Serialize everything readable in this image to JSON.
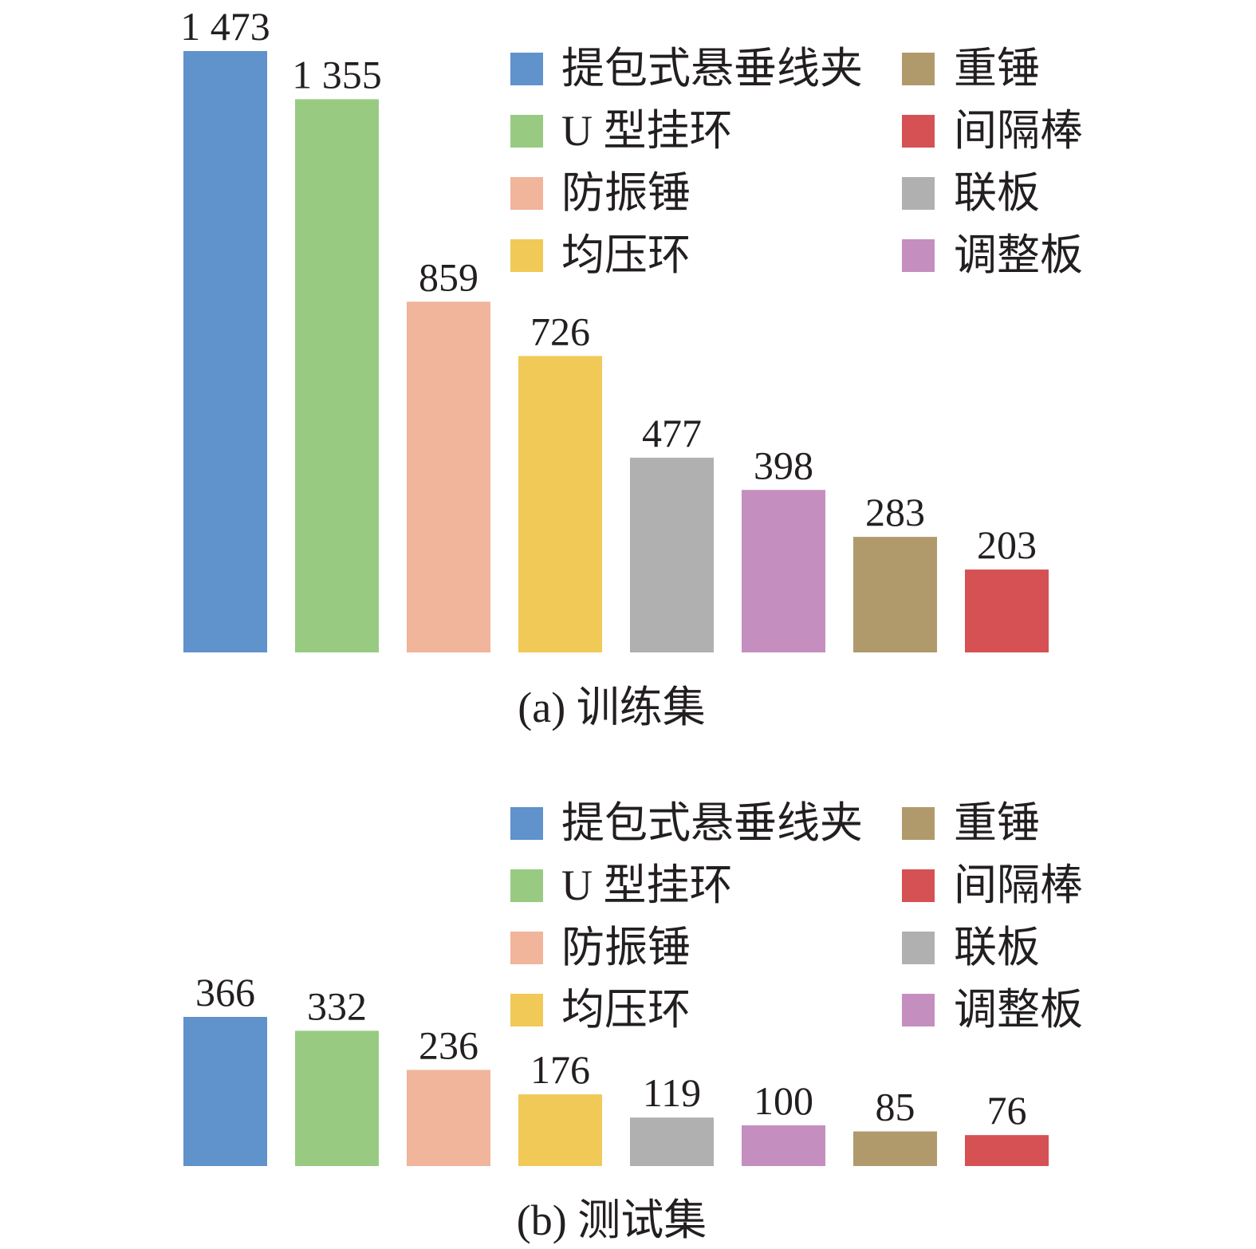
{
  "chart_data": [
    {
      "type": "bar",
      "title": "(a) 训练集",
      "categories": [
        "提包式悬垂线夹",
        "U 型挂环",
        "防振锤",
        "均压环",
        "联板",
        "调整板",
        "重锤",
        "间隔棒"
      ],
      "values": [
        1473,
        1355,
        859,
        726,
        477,
        398,
        283,
        203
      ],
      "value_labels": [
        "1 473",
        "1 355",
        "859",
        "726",
        "477",
        "398",
        "283",
        "203"
      ],
      "colors": [
        "#6092cb",
        "#98cb81",
        "#f0b59b",
        "#f0c957",
        "#b0b0b0",
        "#c48ebf",
        "#b09a6c",
        "#d55154"
      ],
      "legend": {
        "placement": "top-right",
        "items": [
          {
            "label": "提包式悬垂线夹",
            "color": "#6092cb"
          },
          {
            "label": "重锤",
            "color": "#b09a6c"
          },
          {
            "label": "U 型挂环",
            "color": "#98cb81"
          },
          {
            "label": "间隔棒",
            "color": "#d55154"
          },
          {
            "label": "防振锤",
            "color": "#f0b59b"
          },
          {
            "label": "联板",
            "color": "#b0b0b0"
          },
          {
            "label": "均压环",
            "color": "#f0c957"
          },
          {
            "label": "调整板",
            "color": "#c48ebf"
          }
        ]
      },
      "xlabel": "",
      "ylabel": "",
      "ylim": [
        0,
        1473
      ],
      "grid": false
    },
    {
      "type": "bar",
      "title": "(b) 测试集",
      "categories": [
        "提包式悬垂线夹",
        "U 型挂环",
        "防振锤",
        "均压环",
        "联板",
        "调整板",
        "重锤",
        "间隔棒"
      ],
      "values": [
        366,
        332,
        236,
        176,
        119,
        100,
        85,
        76
      ],
      "value_labels": [
        "366",
        "332",
        "236",
        "176",
        "119",
        "100",
        "85",
        "76"
      ],
      "colors": [
        "#6092cb",
        "#98cb81",
        "#f0b59b",
        "#f0c957",
        "#b0b0b0",
        "#c48ebf",
        "#b09a6c",
        "#d55154"
      ],
      "legend": {
        "placement": "top-right",
        "items": [
          {
            "label": "提包式悬垂线夹",
            "color": "#6092cb"
          },
          {
            "label": "重锤",
            "color": "#b09a6c"
          },
          {
            "label": "U 型挂环",
            "color": "#98cb81"
          },
          {
            "label": "间隔棒",
            "color": "#d55154"
          },
          {
            "label": "防振锤",
            "color": "#f0b59b"
          },
          {
            "label": "联板",
            "color": "#b0b0b0"
          },
          {
            "label": "均压环",
            "color": "#f0c957"
          },
          {
            "label": "调整板",
            "color": "#c48ebf"
          }
        ]
      },
      "xlabel": "",
      "ylabel": "",
      "ylim": [
        0,
        366
      ],
      "grid": false
    }
  ]
}
